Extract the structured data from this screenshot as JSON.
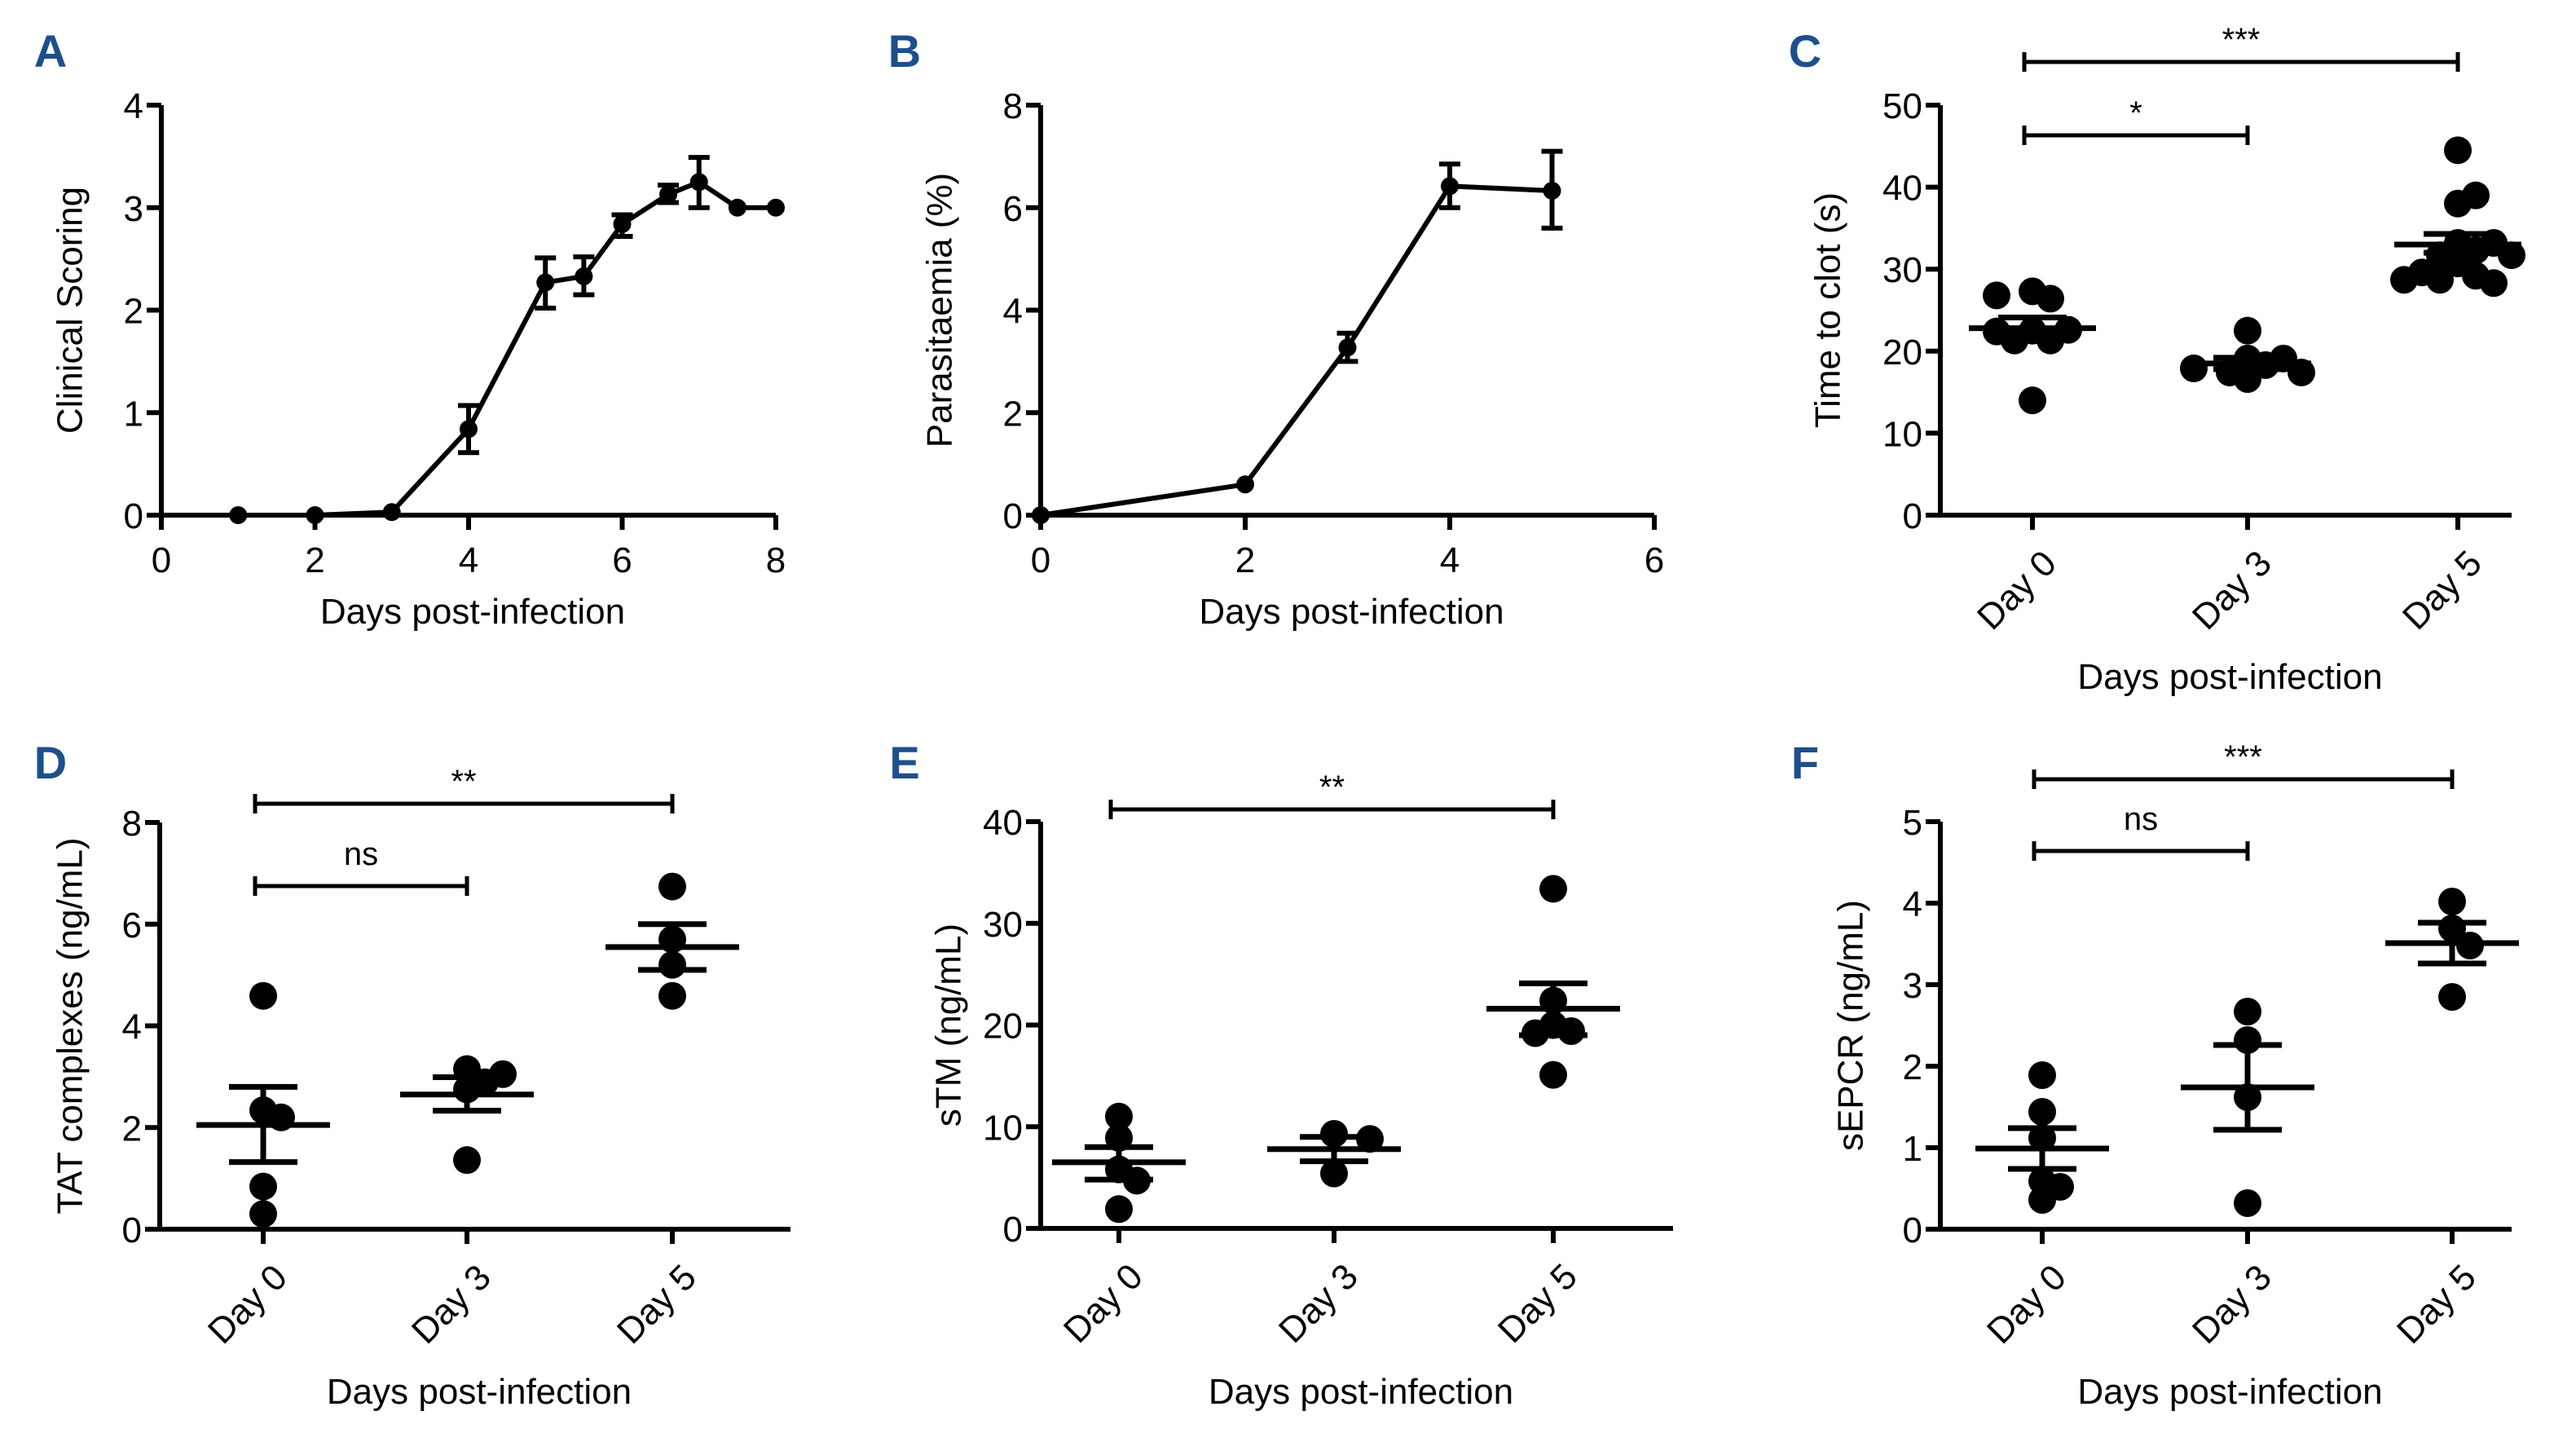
{
  "figure": {
    "panel_label_color": "#1d4f8c",
    "ink_color": "#000000"
  },
  "chart_data": [
    {
      "id": "A",
      "panel_label": "A",
      "type": "line",
      "title": "",
      "xlabel": "Days post-infection",
      "ylabel": "Clinical Scoring",
      "xlim": [
        0,
        8
      ],
      "ylim": [
        0,
        4
      ],
      "xticks": [
        0,
        2,
        4,
        6,
        8
      ],
      "yticks": [
        0,
        1,
        2,
        3,
        4
      ],
      "grid": false,
      "series": [
        {
          "name": "Clinical Scoring",
          "x": [
            1,
            2,
            3,
            4,
            5,
            5.5,
            6,
            6.6,
            7,
            7.5,
            8
          ],
          "y": [
            0,
            0,
            0.03,
            0.84,
            2.27,
            2.33,
            2.84,
            3.13,
            3.25,
            3.0,
            3.0
          ],
          "err_low": [
            0,
            0,
            0,
            0.61,
            2.02,
            2.15,
            2.72,
            3.05,
            3.0,
            3.0,
            3.0
          ],
          "err_high": [
            0,
            0,
            0,
            1.07,
            2.51,
            2.52,
            2.93,
            3.22,
            3.49,
            3.0,
            3.0
          ]
        }
      ]
    },
    {
      "id": "B",
      "panel_label": "B",
      "type": "line",
      "title": "",
      "xlabel": "Days post-infection",
      "ylabel": "Parasitaemia (%)",
      "xlim": [
        0,
        6
      ],
      "ylim": [
        0,
        8
      ],
      "xticks": [
        0,
        2,
        4,
        6
      ],
      "yticks": [
        0,
        2,
        4,
        6,
        8
      ],
      "grid": false,
      "series": [
        {
          "name": "Parasitaemia",
          "x": [
            0,
            2,
            3,
            4,
            5
          ],
          "y": [
            0,
            0.6,
            3.27,
            6.42,
            6.33
          ],
          "err_low": [
            0,
            0.6,
            3.0,
            6.0,
            5.6
          ],
          "err_high": [
            0,
            0.6,
            3.55,
            6.85,
            7.1
          ]
        }
      ]
    },
    {
      "id": "C",
      "panel_label": "C",
      "type": "scatter",
      "title": "",
      "xlabel": "Days post-infection",
      "ylabel": "Time to clot (s)",
      "categories": [
        "Day 0",
        "Day 3",
        "Day 5"
      ],
      "ylim": [
        0,
        50
      ],
      "yticks": [
        0,
        10,
        20,
        30,
        40,
        50
      ],
      "grid": false,
      "groups": [
        {
          "category": "Day 0",
          "values": [
            27.3,
            26.4,
            26.8,
            22.5,
            22.6,
            21.3,
            21.3,
            22.4,
            14.0
          ],
          "mean": 22.8,
          "sem_low": 21.5,
          "sem_high": 24.1
        },
        {
          "category": "Day 3",
          "values": [
            22.5,
            19.1,
            19.1,
            18.3,
            17.4,
            16.6,
            17.4,
            17.9
          ],
          "mean": 18.5,
          "sem_low": 17.8,
          "sem_high": 19.2
        },
        {
          "category": "Day 5",
          "values": [
            44.5,
            38.0,
            39.0,
            33.2,
            33.2,
            32.3,
            31.7,
            31.7,
            30.7,
            29.2,
            28.7,
            28.3,
            28.7,
            29.6
          ],
          "mean": 33.0,
          "sem_low": 32.0,
          "sem_high": 34.3
        }
      ],
      "comparisons": [
        {
          "from": "Day 0",
          "to": "Day 3",
          "label": "*",
          "level": 1
        },
        {
          "from": "Day 0",
          "to": "Day 5",
          "label": "***",
          "level": 2
        }
      ]
    },
    {
      "id": "D",
      "panel_label": "D",
      "type": "scatter",
      "title": "",
      "xlabel": "Days post-infection",
      "ylabel": "TAT complexes (ng/mL)",
      "categories": [
        "Day 0",
        "Day 3",
        "Day 5"
      ],
      "ylim": [
        0,
        8
      ],
      "yticks": [
        0,
        2,
        4,
        6,
        8
      ],
      "grid": false,
      "groups": [
        {
          "category": "Day 0",
          "values": [
            4.59,
            2.34,
            2.2,
            0.84,
            0.3
          ],
          "mean": 2.05,
          "sem_low": 1.32,
          "sem_high": 2.8
        },
        {
          "category": "Day 3",
          "values": [
            3.15,
            2.89,
            2.75,
            3.05,
            1.36
          ],
          "mean": 2.65,
          "sem_low": 2.33,
          "sem_high": 2.99
        },
        {
          "category": "Day 5",
          "values": [
            6.74,
            5.7,
            5.2,
            4.59
          ],
          "mean": 5.55,
          "sem_low": 5.1,
          "sem_high": 6.0
        }
      ],
      "comparisons": [
        {
          "from": "Day 0",
          "to": "Day 3",
          "label": "ns",
          "level": 1
        },
        {
          "from": "Day 0",
          "to": "Day 5",
          "label": "**",
          "level": 2
        }
      ]
    },
    {
      "id": "E",
      "panel_label": "E",
      "type": "scatter",
      "title": "",
      "xlabel": "Days post-infection",
      "ylabel": "sTM (ng/mL)",
      "categories": [
        "Day 0",
        "Day 3",
        "Day 5"
      ],
      "ylim": [
        0,
        40
      ],
      "yticks": [
        0,
        10,
        20,
        30,
        40
      ],
      "grid": false,
      "groups": [
        {
          "category": "Day 0",
          "values": [
            11.0,
            8.9,
            5.8,
            4.7,
            1.9
          ],
          "mean": 6.5,
          "sem_low": 4.8,
          "sem_high": 8.0
        },
        {
          "category": "Day 3",
          "values": [
            9.3,
            8.8,
            5.4
          ],
          "mean": 7.8,
          "sem_low": 6.6,
          "sem_high": 9.0
        },
        {
          "category": "Day 5",
          "values": [
            33.4,
            22.4,
            20.0,
            19.4,
            19.2,
            15.1
          ],
          "mean": 21.6,
          "sem_low": 19.0,
          "sem_high": 24.1
        }
      ],
      "comparisons": [
        {
          "from": "Day 0",
          "to": "Day 5",
          "label": "**",
          "level": 2
        }
      ]
    },
    {
      "id": "F",
      "panel_label": "F",
      "type": "scatter",
      "title": "",
      "xlabel": "Days post-infection",
      "ylabel": "sEPCR (ng/mL)",
      "categories": [
        "Day 0",
        "Day 3",
        "Day 5"
      ],
      "ylim": [
        0,
        5
      ],
      "yticks": [
        0,
        1,
        2,
        3,
        4,
        5
      ],
      "grid": false,
      "groups": [
        {
          "category": "Day 0",
          "values": [
            1.89,
            1.44,
            1.12,
            0.59,
            0.52,
            0.36
          ],
          "mean": 0.99,
          "sem_low": 0.74,
          "sem_high": 1.24
        },
        {
          "category": "Day 3",
          "values": [
            2.67,
            2.32,
            1.62,
            0.32
          ],
          "mean": 1.74,
          "sem_low": 1.22,
          "sem_high": 2.26
        },
        {
          "category": "Day 5",
          "values": [
            4.02,
            3.69,
            3.48,
            2.85
          ],
          "mean": 3.51,
          "sem_low": 3.26,
          "sem_high": 3.76
        }
      ],
      "comparisons": [
        {
          "from": "Day 0",
          "to": "Day 3",
          "label": "ns",
          "level": 1
        },
        {
          "from": "Day 0",
          "to": "Day 5",
          "label": "***",
          "level": 2
        }
      ]
    }
  ]
}
